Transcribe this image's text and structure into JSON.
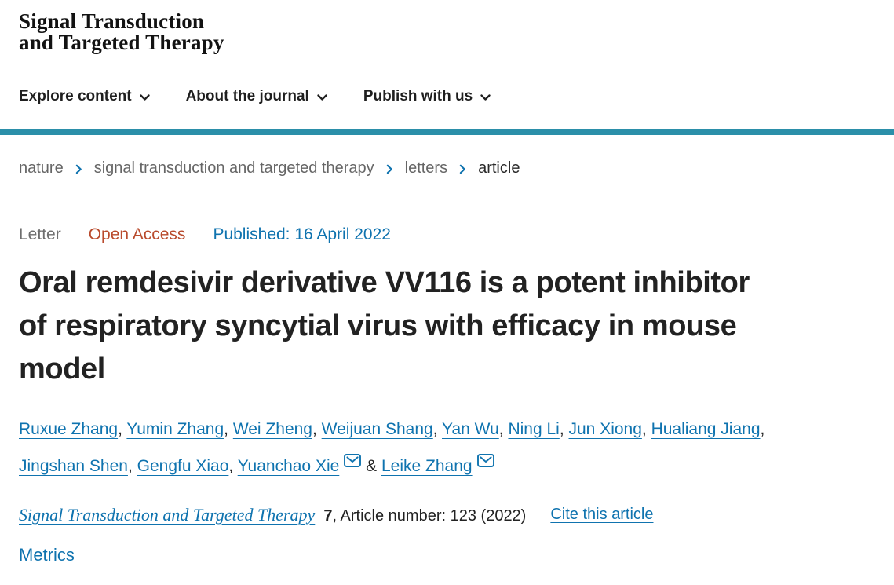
{
  "header": {
    "logo_line1": "Signal Transduction",
    "logo_line2": "and Targeted Therapy"
  },
  "nav": {
    "items": [
      "Explore content",
      "About the journal",
      "Publish with us"
    ]
  },
  "breadcrumb": {
    "items": [
      "nature",
      "signal transduction and targeted therapy",
      "letters",
      "article"
    ]
  },
  "article": {
    "type_label": "Letter",
    "access_label": "Open Access",
    "published_label": "Published: 16 April 2022",
    "title": "Oral remdesivir derivative VV116 is a potent inhibitor of respiratory syncytial virus with efficacy in mouse model",
    "title_lines": [
      "Oral remdesivir derivative VV116 is a potent inhibitor",
      "of respiratory syncytial virus with efficacy in mouse",
      "model"
    ],
    "authors": [
      {
        "name": "Ruxue Zhang"
      },
      {
        "name": "Yumin Zhang"
      },
      {
        "name": "Wei Zheng"
      },
      {
        "name": "Weijuan Shang"
      },
      {
        "name": "Yan Wu"
      },
      {
        "name": "Ning Li"
      },
      {
        "name": "Jun Xiong"
      },
      {
        "name": "Hualiang Jiang",
        "break_after": true
      },
      {
        "name": "Jingshan Shen"
      },
      {
        "name": "Gengfu Xiao"
      },
      {
        "name": "Yuanchao Xie",
        "email": true
      },
      {
        "name": "Leike Zhang",
        "email": true
      }
    ],
    "citation": {
      "journal": "Signal Transduction and Targeted Therapy",
      "volume": "7",
      "suffix": ", Article number: 123 (2022)",
      "cite_link": "Cite this article"
    },
    "metrics_link": "Metrics"
  },
  "colors": {
    "accent_teal": "#2b8fa9",
    "link_blue": "#0f73af",
    "open_access": "#b94b2d",
    "text_dark": "#222222",
    "text_gray": "#666666",
    "divider_gray": "#b9b9b9",
    "border_light": "#ececec"
  }
}
